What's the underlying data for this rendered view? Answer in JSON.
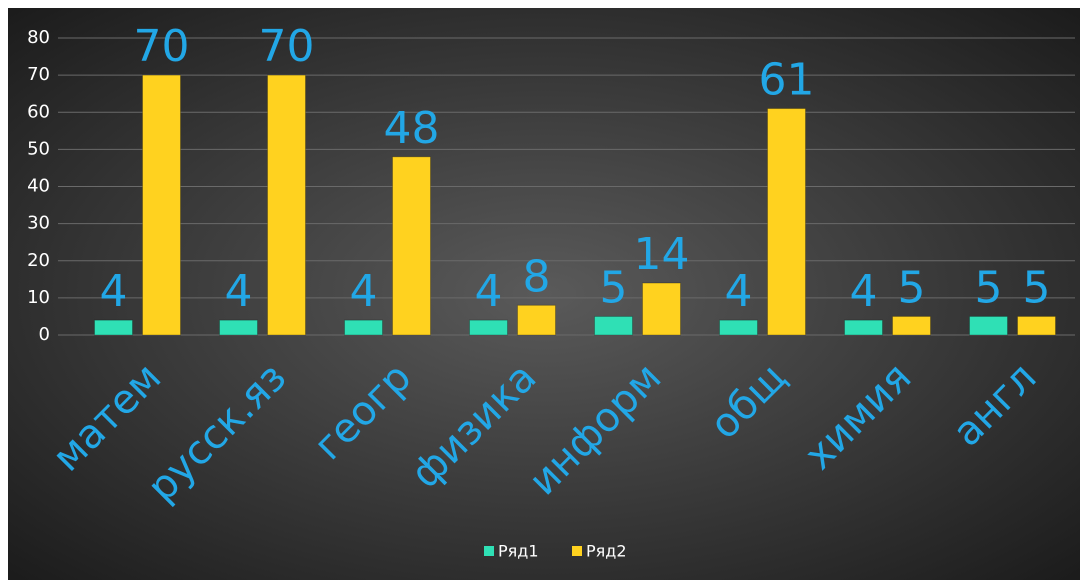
{
  "chart_data": {
    "type": "bar",
    "categories": [
      "матем",
      "русск.яз",
      "геогр",
      "физика",
      "информ",
      "общ",
      "химия",
      "англ"
    ],
    "series": [
      {
        "name": "Ряд1",
        "color": "#2fe0b5",
        "values": [
          4,
          4,
          4,
          4,
          5,
          4,
          4,
          5
        ]
      },
      {
        "name": "Ряд2",
        "color": "#ffd21f",
        "values": [
          70,
          70,
          48,
          8,
          14,
          61,
          5,
          5
        ]
      }
    ],
    "ylim": [
      0,
      80
    ],
    "yticks": [
      0,
      10,
      20,
      30,
      40,
      50,
      60,
      70,
      80
    ],
    "grid": true,
    "legend": "bottom"
  }
}
